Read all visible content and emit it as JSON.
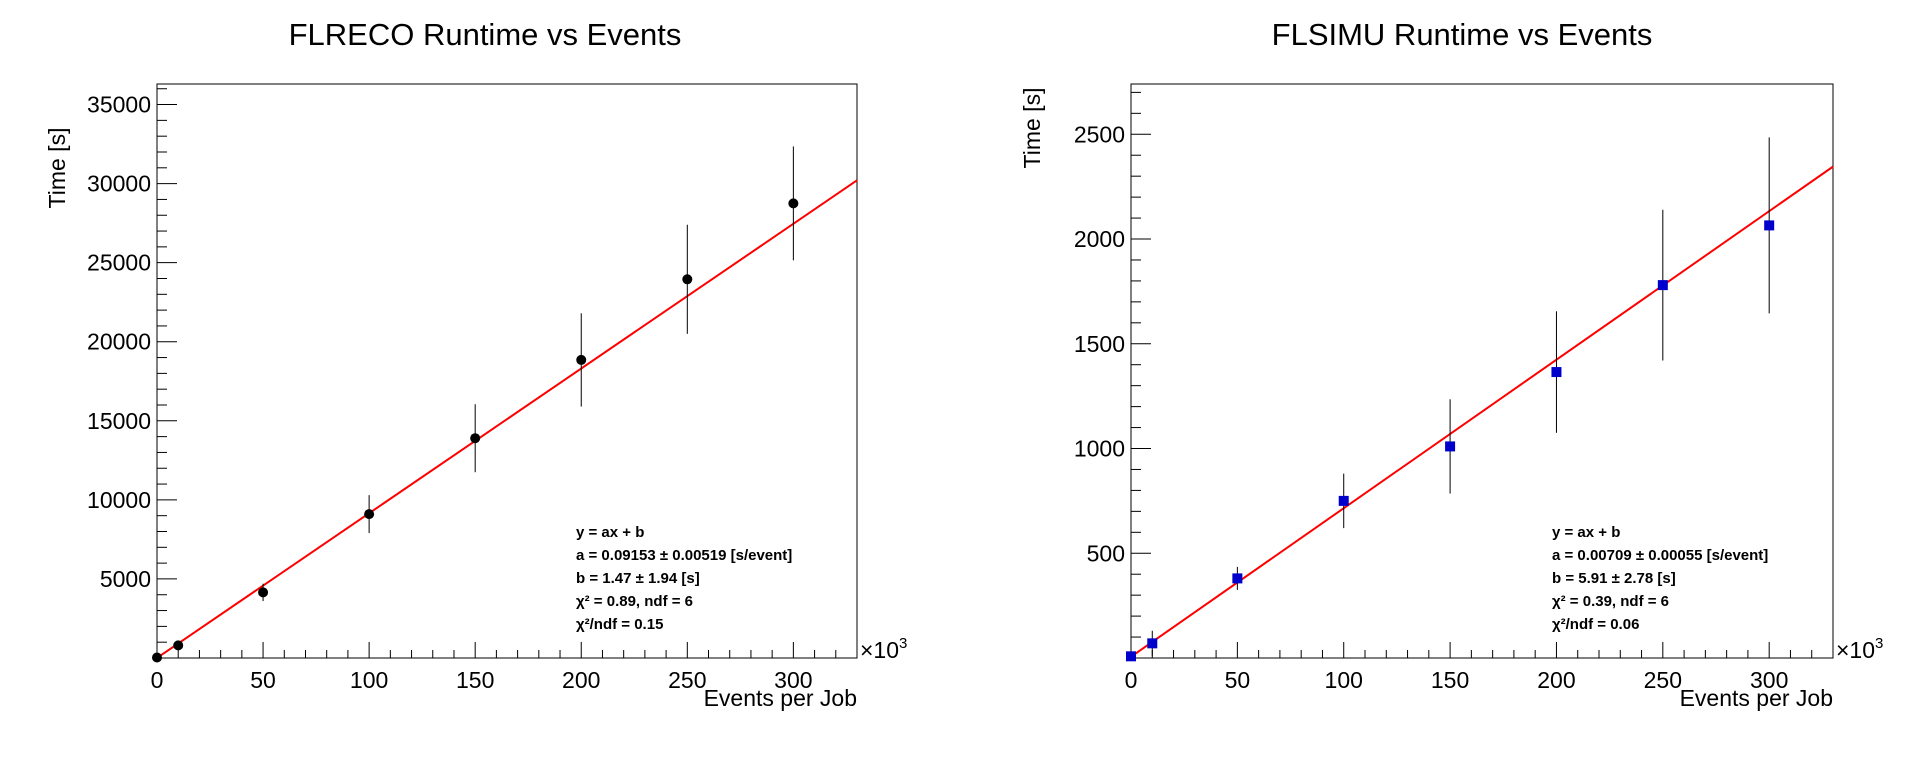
{
  "chart_data": [
    {
      "type": "scatter",
      "title": "FLRECO Runtime vs Events",
      "xlabel": "Events per Job",
      "ylabel": "Time [s]",
      "x_multiplier_label": "×10",
      "x_multiplier_exp": "3",
      "xlim": [
        0,
        330
      ],
      "ylim": [
        0,
        36300
      ],
      "x_ticks": [
        0,
        50,
        100,
        150,
        200,
        250,
        300
      ],
      "y_ticks": [
        5000,
        10000,
        15000,
        20000,
        25000,
        30000,
        35000
      ],
      "x_minor_step": 10,
      "y_minor_step": 1000,
      "marker": "circle",
      "marker_color": "#000000",
      "fit_color": "#ff0000",
      "grid": false,
      "series": [
        {
          "x": [
            0,
            10,
            50,
            100,
            150,
            200,
            250,
            300
          ],
          "y": [
            30,
            800,
            4150,
            9100,
            13900,
            18850,
            23950,
            28750
          ],
          "yerr": [
            20,
            300,
            550,
            1200,
            2150,
            2950,
            3450,
            3600
          ]
        }
      ],
      "fit": {
        "a": 91.53,
        "b": 1.47
      },
      "stats": [
        "y = ax + b",
        "a = 0.09153 ± 0.00519 [s/event]",
        "b = 1.47 ± 1.94 [s]",
        "χ² = 0.89,  ndf = 6",
        "χ²/ndf = 0.15"
      ]
    },
    {
      "type": "scatter",
      "title": "FLSIMU Runtime vs Events",
      "xlabel": "Events per Job",
      "ylabel": "Time [s]",
      "x_multiplier_label": "×10",
      "x_multiplier_exp": "3",
      "xlim": [
        0,
        330
      ],
      "ylim": [
        0,
        2740
      ],
      "x_ticks": [
        0,
        50,
        100,
        150,
        200,
        250,
        300
      ],
      "y_ticks": [
        500,
        1000,
        1500,
        2000,
        2500
      ],
      "x_minor_step": 10,
      "y_minor_step": 100,
      "marker": "square",
      "marker_color": "#0000cc",
      "fit_color": "#ff0000",
      "grid": false,
      "series": [
        {
          "x": [
            0,
            10,
            50,
            100,
            150,
            200,
            250,
            300
          ],
          "y": [
            8,
            70,
            380,
            750,
            1010,
            1365,
            1780,
            2065
          ],
          "yerr": [
            5,
            60,
            55,
            130,
            225,
            290,
            360,
            420
          ]
        }
      ],
      "fit": {
        "a": 7.09,
        "b": 5.91
      },
      "stats": [
        "y = ax + b",
        "a = 0.00709 ± 0.00055 [s/event]",
        "b = 5.91 ± 2.78 [s]",
        "χ² = 0.39,  ndf = 6",
        "χ²/ndf = 0.06"
      ]
    }
  ]
}
